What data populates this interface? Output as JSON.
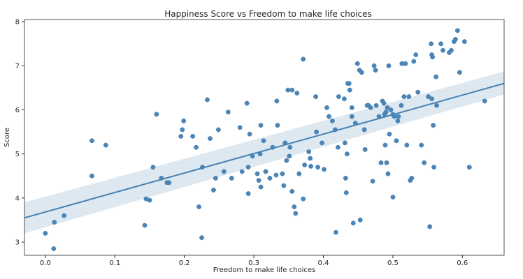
{
  "chart_data": {
    "type": "scatter",
    "title": "Happiness Score vs Freedom to make life choices",
    "xlabel": "Freedom to make life choices",
    "ylabel": "Score",
    "xlim": [
      -0.03,
      0.66
    ],
    "ylim": [
      2.7,
      8.05
    ],
    "xticks": [
      0.0,
      0.1,
      0.2,
      0.3,
      0.4,
      0.5,
      0.6
    ],
    "xtick_labels": [
      "0.0",
      "0.1",
      "0.2",
      "0.3",
      "0.4",
      "0.5",
      "0.6"
    ],
    "yticks": [
      3,
      4,
      5,
      6,
      7,
      8
    ],
    "ytick_labels": [
      "3",
      "4",
      "5",
      "6",
      "7",
      "8"
    ],
    "grid": false,
    "color": "#4682b4",
    "regression": {
      "x_range": [
        -0.03,
        0.66
      ],
      "line": [
        3.55,
        6.6
      ],
      "ci_lower": [
        3.2,
        6.35
      ],
      "ci_upper": [
        3.9,
        6.87
      ]
    },
    "points": [
      [
        0.0,
        3.2
      ],
      [
        0.012,
        2.85
      ],
      [
        0.013,
        3.45
      ],
      [
        0.027,
        3.6
      ],
      [
        0.067,
        5.3
      ],
      [
        0.067,
        4.5
      ],
      [
        0.087,
        5.2
      ],
      [
        0.143,
        3.38
      ],
      [
        0.145,
        3.98
      ],
      [
        0.15,
        3.95
      ],
      [
        0.155,
        4.7
      ],
      [
        0.16,
        5.9
      ],
      [
        0.167,
        4.45
      ],
      [
        0.175,
        4.35
      ],
      [
        0.178,
        4.35
      ],
      [
        0.195,
        5.4
      ],
      [
        0.197,
        5.55
      ],
      [
        0.199,
        5.75
      ],
      [
        0.212,
        5.4
      ],
      [
        0.217,
        5.15
      ],
      [
        0.221,
        3.8
      ],
      [
        0.225,
        3.1
      ],
      [
        0.226,
        4.7
      ],
      [
        0.233,
        6.23
      ],
      [
        0.237,
        5.35
      ],
      [
        0.242,
        4.18
      ],
      [
        0.245,
        4.45
      ],
      [
        0.249,
        5.55
      ],
      [
        0.257,
        4.6
      ],
      [
        0.263,
        5.95
      ],
      [
        0.268,
        4.45
      ],
      [
        0.28,
        5.6
      ],
      [
        0.283,
        4.6
      ],
      [
        0.29,
        6.15
      ],
      [
        0.292,
        4.7
      ],
      [
        0.292,
        4.1
      ],
      [
        0.294,
        5.45
      ],
      [
        0.298,
        4.95
      ],
      [
        0.305,
        4.55
      ],
      [
        0.307,
        4.4
      ],
      [
        0.309,
        5.0
      ],
      [
        0.31,
        5.65
      ],
      [
        0.31,
        4.25
      ],
      [
        0.314,
        5.3
      ],
      [
        0.317,
        4.6
      ],
      [
        0.323,
        4.45
      ],
      [
        0.327,
        5.15
      ],
      [
        0.332,
        4.52
      ],
      [
        0.333,
        6.2
      ],
      [
        0.334,
        5.65
      ],
      [
        0.341,
        4.55
      ],
      [
        0.343,
        4.28
      ],
      [
        0.345,
        5.25
      ],
      [
        0.347,
        4.85
      ],
      [
        0.349,
        6.45
      ],
      [
        0.351,
        4.95
      ],
      [
        0.352,
        5.15
      ],
      [
        0.355,
        4.15
      ],
      [
        0.355,
        6.45
      ],
      [
        0.358,
        3.8
      ],
      [
        0.36,
        3.65
      ],
      [
        0.362,
        6.38
      ],
      [
        0.365,
        4.55
      ],
      [
        0.371,
        3.98
      ],
      [
        0.371,
        7.15
      ],
      [
        0.373,
        4.75
      ],
      [
        0.379,
        5.05
      ],
      [
        0.381,
        4.9
      ],
      [
        0.382,
        4.72
      ],
      [
        0.389,
        6.3
      ],
      [
        0.39,
        5.5
      ],
      [
        0.392,
        4.7
      ],
      [
        0.398,
        5.25
      ],
      [
        0.401,
        4.65
      ],
      [
        0.405,
        6.05
      ],
      [
        0.408,
        5.85
      ],
      [
        0.413,
        5.75
      ],
      [
        0.417,
        5.55
      ],
      [
        0.418,
        3.22
      ],
      [
        0.421,
        5.15
      ],
      [
        0.422,
        6.3
      ],
      [
        0.43,
        6.25
      ],
      [
        0.431,
        5.25
      ],
      [
        0.432,
        4.45
      ],
      [
        0.433,
        4.12
      ],
      [
        0.434,
        5.0
      ],
      [
        0.435,
        6.6
      ],
      [
        0.437,
        6.6
      ],
      [
        0.438,
        6.45
      ],
      [
        0.441,
        5.85
      ],
      [
        0.441,
        6.05
      ],
      [
        0.443,
        3.43
      ],
      [
        0.446,
        5.7
      ],
      [
        0.449,
        7.05
      ],
      [
        0.452,
        6.9
      ],
      [
        0.453,
        3.5
      ],
      [
        0.455,
        6.85
      ],
      [
        0.459,
        5.55
      ],
      [
        0.46,
        5.1
      ],
      [
        0.463,
        6.1
      ],
      [
        0.465,
        6.1
      ],
      [
        0.468,
        6.05
      ],
      [
        0.471,
        4.38
      ],
      [
        0.473,
        7.0
      ],
      [
        0.475,
        6.9
      ],
      [
        0.476,
        6.1
      ],
      [
        0.48,
        5.85
      ],
      [
        0.483,
        4.8
      ],
      [
        0.485,
        6.2
      ],
      [
        0.487,
        6.15
      ],
      [
        0.488,
        5.9
      ],
      [
        0.489,
        5.2
      ],
      [
        0.49,
        5.95
      ],
      [
        0.491,
        4.8
      ],
      [
        0.492,
        6.05
      ],
      [
        0.493,
        4.55
      ],
      [
        0.494,
        7.0
      ],
      [
        0.495,
        5.45
      ],
      [
        0.497,
        6.0
      ],
      [
        0.5,
        4.02
      ],
      [
        0.5,
        5.9
      ],
      [
        0.502,
        5.85
      ],
      [
        0.505,
        5.3
      ],
      [
        0.507,
        5.75
      ],
      [
        0.508,
        5.85
      ],
      [
        0.512,
        6.1
      ],
      [
        0.513,
        7.05
      ],
      [
        0.516,
        6.3
      ],
      [
        0.518,
        7.05
      ],
      [
        0.52,
        5.2
      ],
      [
        0.523,
        6.3
      ],
      [
        0.525,
        4.4
      ],
      [
        0.527,
        4.45
      ],
      [
        0.53,
        7.1
      ],
      [
        0.533,
        7.25
      ],
      [
        0.536,
        6.4
      ],
      [
        0.541,
        5.2
      ],
      [
        0.545,
        4.8
      ],
      [
        0.551,
        6.3
      ],
      [
        0.553,
        3.35
      ],
      [
        0.555,
        7.5
      ],
      [
        0.556,
        7.25
      ],
      [
        0.556,
        6.25
      ],
      [
        0.557,
        7.2
      ],
      [
        0.558,
        5.65
      ],
      [
        0.559,
        4.7
      ],
      [
        0.562,
        6.75
      ],
      [
        0.563,
        6.1
      ],
      [
        0.569,
        7.5
      ],
      [
        0.572,
        7.35
      ],
      [
        0.581,
        7.3
      ],
      [
        0.584,
        7.35
      ],
      [
        0.588,
        7.55
      ],
      [
        0.59,
        7.6
      ],
      [
        0.593,
        7.8
      ],
      [
        0.596,
        6.85
      ],
      [
        0.603,
        7.55
      ],
      [
        0.61,
        4.7
      ],
      [
        0.632,
        6.2
      ]
    ]
  }
}
